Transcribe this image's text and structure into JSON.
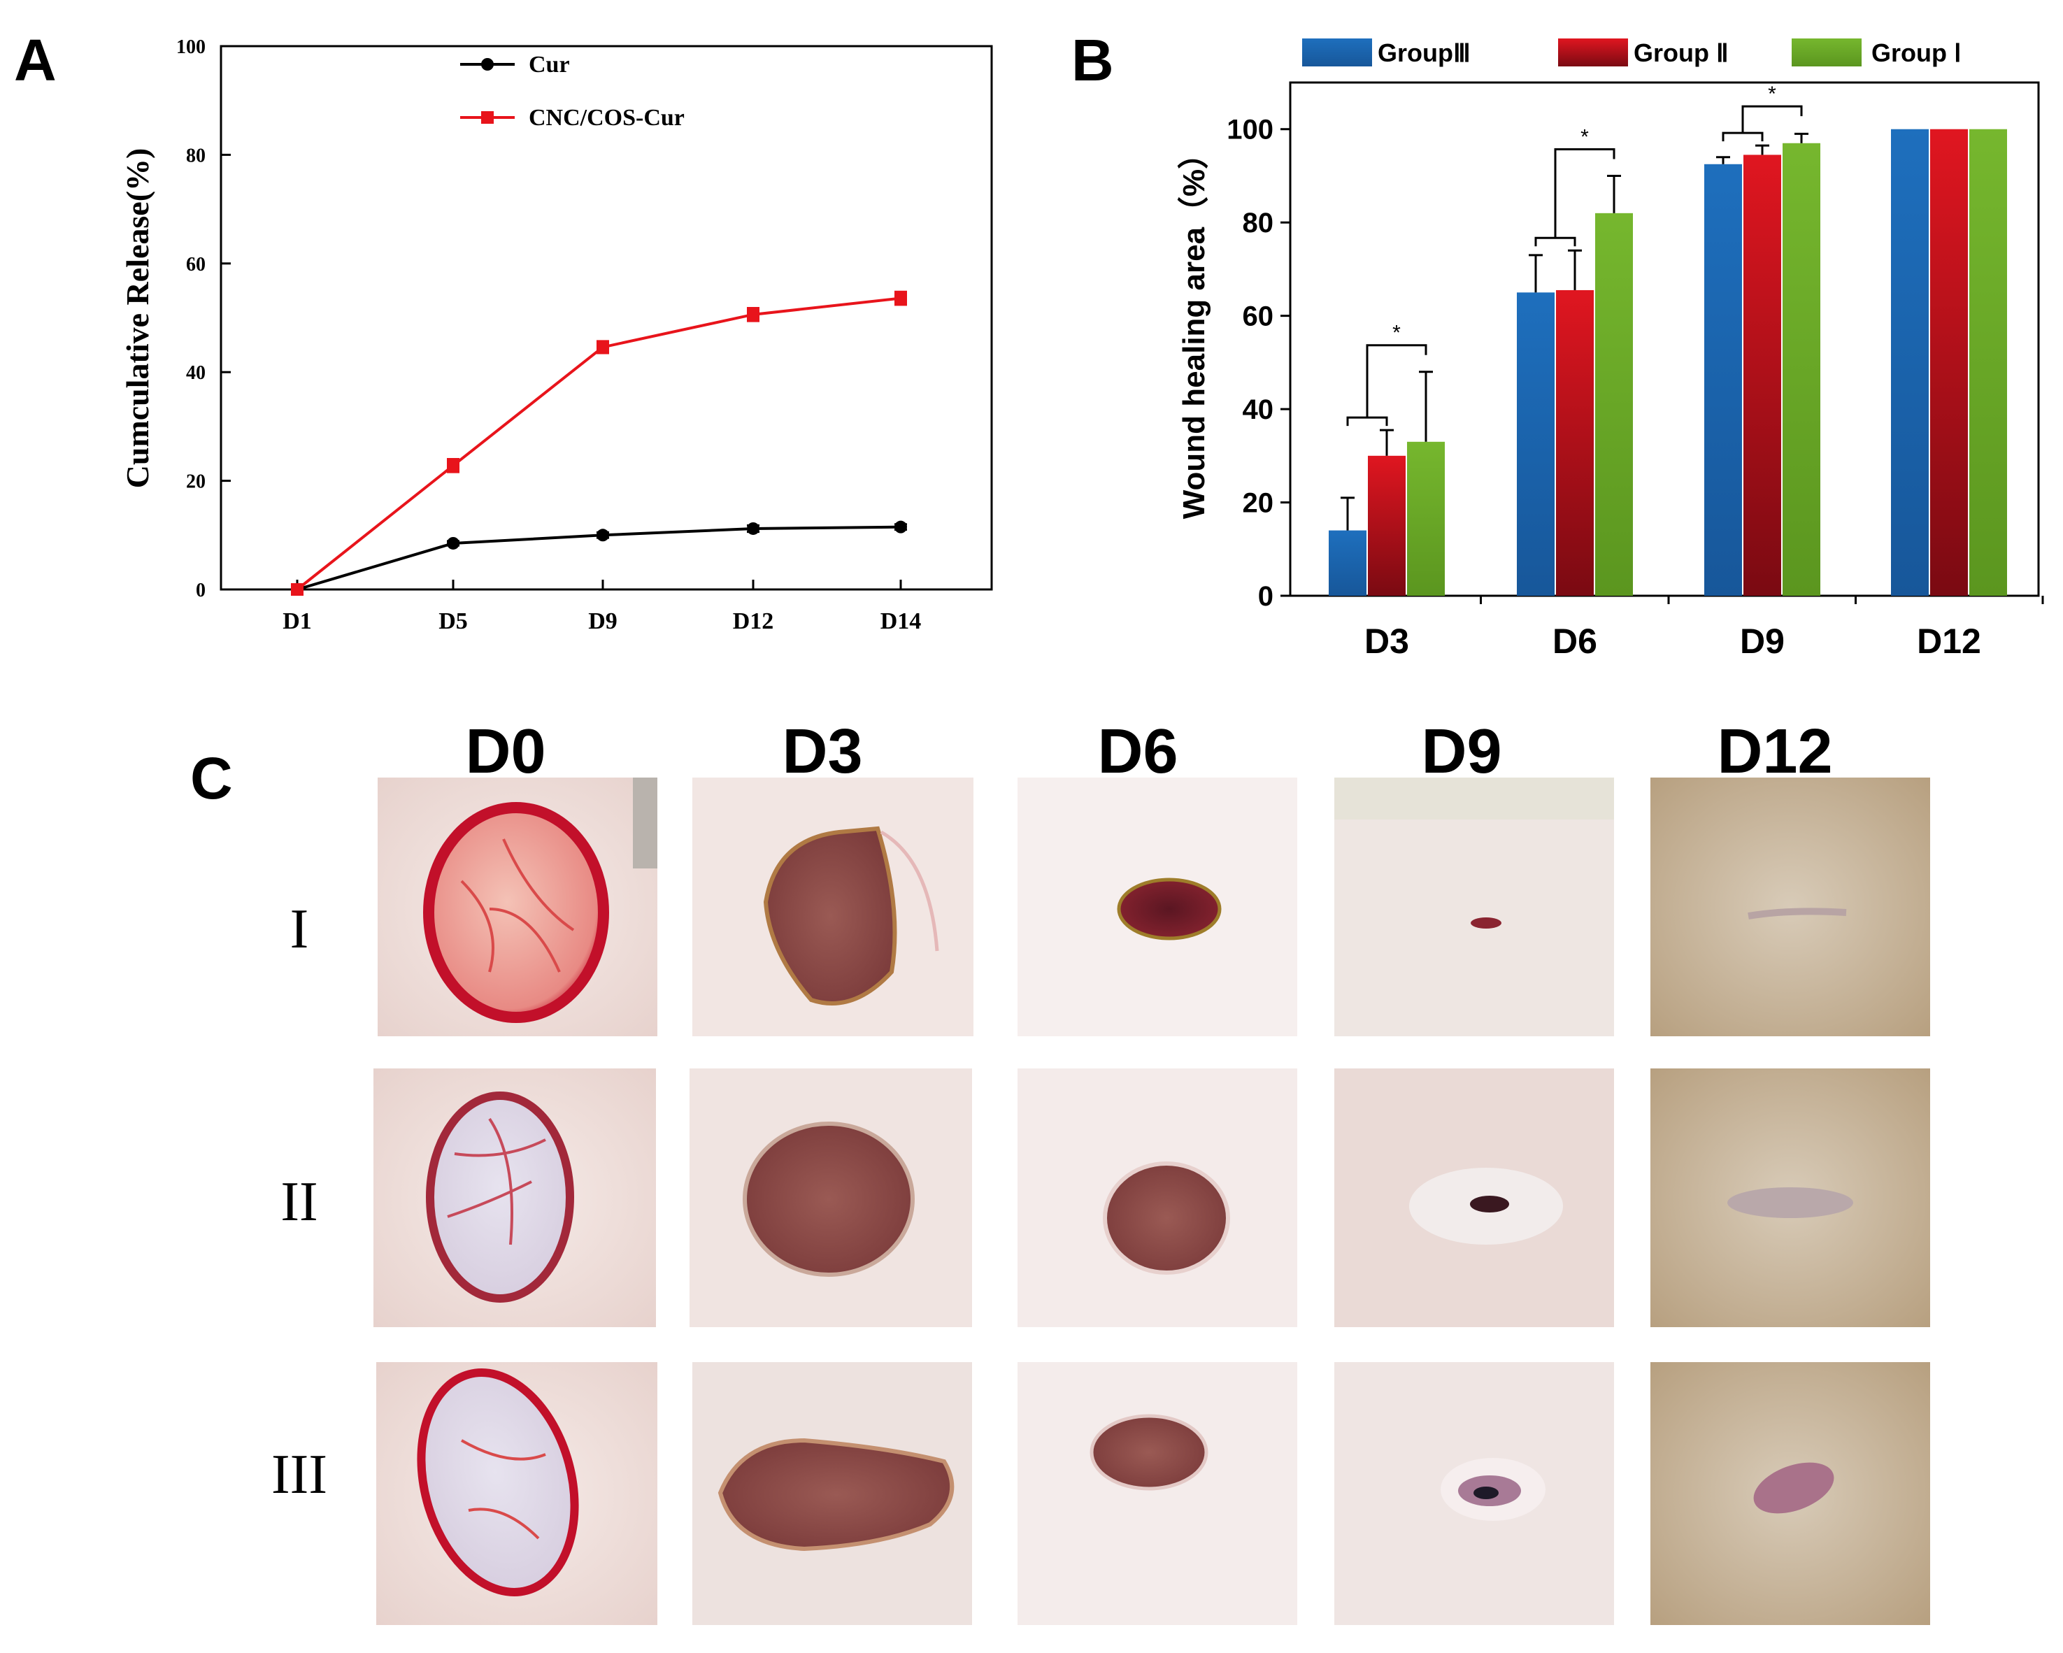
{
  "panels": {
    "a": {
      "letter": "A"
    },
    "b": {
      "letter": "B"
    },
    "c": {
      "letter": "C"
    }
  },
  "colors": {
    "cur": "#000000",
    "cnc": "#e8141b",
    "group3": "#1f69b1",
    "group2": "#c2101e",
    "group1": "#6aa82a"
  },
  "chart_data": [
    {
      "type": "line",
      "panel": "A",
      "title": "",
      "xlabel": "",
      "ylabel": "Cumculative Release(%)",
      "categories": [
        "D1",
        "D5",
        "D9",
        "D12",
        "D14"
      ],
      "ylim": [
        0,
        100
      ],
      "yticks": [
        0,
        20,
        40,
        60,
        80,
        100
      ],
      "legend_position": "top-center",
      "series": [
        {
          "name": "Cur",
          "values": [
            0,
            8.5,
            10,
            11.2,
            11.5
          ],
          "errors": [
            0,
            0.4,
            0.5,
            0.6,
            0.5
          ]
        },
        {
          "name": "CNC/COS-Cur",
          "values": [
            0,
            22.8,
            44.6,
            50.6,
            53.6
          ],
          "errors": [
            0,
            1.2,
            1.1,
            1.2,
            1.2
          ]
        }
      ]
    },
    {
      "type": "bar",
      "panel": "B",
      "title": "",
      "xlabel": "",
      "ylabel": "Wound healing area（%）",
      "categories": [
        "D3",
        "D6",
        "D9",
        "D12"
      ],
      "ylim": [
        0,
        110
      ],
      "yticks": [
        0,
        20,
        40,
        60,
        80,
        100
      ],
      "legend_position": "top",
      "series": [
        {
          "name": "GroupⅢ",
          "values": [
            14,
            65,
            92.5,
            100
          ],
          "errors": [
            7,
            8,
            1.5,
            0
          ]
        },
        {
          "name": "Group Ⅱ",
          "values": [
            30,
            65.5,
            94.5,
            100
          ],
          "errors": [
            5.5,
            8.5,
            2,
            0
          ]
        },
        {
          "name": "Group Ⅰ",
          "values": [
            33,
            82,
            97,
            100
          ],
          "errors": [
            15,
            8,
            2,
            0
          ]
        }
      ],
      "significance": [
        {
          "category": "D3",
          "label": "*"
        },
        {
          "category": "D6",
          "label": "*"
        },
        {
          "category": "D9",
          "label": "*"
        }
      ]
    }
  ],
  "photo_grid": {
    "columns": [
      "D0",
      "D3",
      "D6",
      "D9",
      "D12"
    ],
    "rows": [
      "I",
      "II",
      "III"
    ]
  }
}
